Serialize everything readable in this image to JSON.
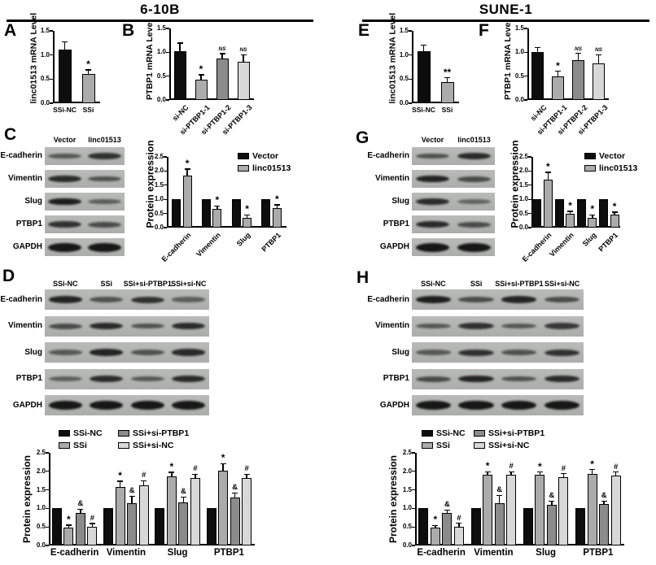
{
  "header": {
    "left_title": "6-10B",
    "right_title": "SUNE-1"
  },
  "palette": {
    "black": "#0d0d0d",
    "gray": "#ababab",
    "darkgray": "#8b8b8b",
    "lightgray": "#d8d8d8"
  },
  "panels": {
    "A": {
      "letter": "A"
    },
    "B": {
      "letter": "B"
    },
    "C": {
      "letter": "C"
    },
    "D": {
      "letter": "D"
    },
    "E": {
      "letter": "E"
    },
    "F": {
      "letter": "F"
    },
    "G": {
      "letter": "G"
    },
    "H": {
      "letter": "H"
    }
  },
  "blots": {
    "C": {
      "lane_labels": [
        "Vector",
        "linc01513"
      ],
      "rows": [
        {
          "label": "E-cadherin",
          "bands": [
            0.5,
            0.8
          ]
        },
        {
          "label": "Vimentin",
          "bands": [
            0.85,
            0.55
          ]
        },
        {
          "label": "Slug",
          "bands": [
            0.95,
            0.45
          ]
        },
        {
          "label": "PTBP1",
          "bands": [
            0.8,
            0.6
          ]
        },
        {
          "label": "GAPDH",
          "bands": [
            1,
            1
          ],
          "t": 11
        }
      ]
    },
    "G": {
      "lane_labels": [
        "Vector",
        "linc01513"
      ],
      "rows": [
        {
          "label": "E-cadherin",
          "bands": [
            0.55,
            0.85
          ]
        },
        {
          "label": "Vimentin",
          "bands": [
            0.9,
            0.6
          ]
        },
        {
          "label": "Slug",
          "bands": [
            0.85,
            0.4
          ]
        },
        {
          "label": "PTBP1",
          "bands": [
            0.85,
            0.6
          ]
        },
        {
          "label": "GAPDH",
          "bands": [
            1,
            1
          ],
          "t": 11
        }
      ]
    },
    "D": {
      "lane_labels": [
        "SSi-NC",
        "SSi",
        "SSi+si-PTBP1",
        "SSi+si-NC"
      ],
      "rows": [
        {
          "label": "E-cadherin",
          "bands": [
            0.9,
            0.55,
            0.8,
            0.45
          ]
        },
        {
          "label": "Vimentin",
          "bands": [
            0.6,
            0.85,
            0.55,
            0.85
          ]
        },
        {
          "label": "Slug",
          "bands": [
            0.5,
            0.9,
            0.55,
            0.85
          ]
        },
        {
          "label": "PTBP1",
          "bands": [
            0.45,
            0.85,
            0.5,
            0.85
          ]
        },
        {
          "label": "GAPDH",
          "bands": [
            1,
            1,
            1,
            1
          ],
          "t": 11
        }
      ]
    },
    "H": {
      "lane_labels": [
        "SSi-NC",
        "SSi",
        "SSi+si-PTBP1",
        "SSi+si-NC"
      ],
      "rows": [
        {
          "label": "E-cadherin",
          "bands": [
            0.95,
            0.6,
            0.9,
            0.6
          ]
        },
        {
          "label": "Vimentin",
          "bands": [
            0.5,
            0.8,
            0.5,
            0.75
          ]
        },
        {
          "label": "Slug",
          "bands": [
            0.5,
            0.8,
            0.55,
            0.8
          ]
        },
        {
          "label": "PTBP1",
          "bands": [
            0.6,
            0.9,
            0.55,
            0.85
          ]
        },
        {
          "label": "GAPDH",
          "bands": [
            1,
            1,
            1,
            1
          ],
          "t": 11
        }
      ]
    }
  },
  "chart_data": {
    "A": {
      "type": "bar",
      "ylabel": "linc01513 mRNA Level",
      "ylim": [
        0,
        1.5
      ],
      "yticks": [
        "0.0",
        "0.5",
        "1.0",
        "1.5"
      ],
      "categories": [
        "SSi-NC",
        "SSi"
      ],
      "series": [
        {
          "name": "",
          "colors": [
            "black",
            "gray"
          ],
          "values": [
            1.12,
            0.6
          ],
          "errors": [
            0.15,
            0.09
          ],
          "sig": [
            "",
            "*"
          ]
        }
      ]
    },
    "B": {
      "type": "bar",
      "ylabel": "PTBP1 mRNA Level",
      "ylim": [
        0,
        1.5
      ],
      "yticks": [
        "0.0",
        "0.5",
        "1.0",
        "1.5"
      ],
      "categories": [
        "si-NC",
        "si-PTBP1-1",
        "si-PTBP1-2",
        "si-PTBP1-3"
      ],
      "series": [
        {
          "name": "",
          "colors": [
            "black",
            "gray",
            "darkgray",
            "lightgray"
          ],
          "values": [
            1.03,
            0.43,
            0.87,
            0.8
          ],
          "errors": [
            0.16,
            0.1,
            0.1,
            0.15
          ],
          "sig": [
            "",
            "*",
            "NS",
            "NS"
          ]
        }
      ]
    },
    "C": {
      "type": "bar",
      "ylabel": "Protein expression",
      "ylim": [
        0,
        2.5
      ],
      "yticks": [
        "0.0",
        "0.5",
        "1.0",
        "1.5",
        "2.0",
        "2.5"
      ],
      "categories": [
        "E-cadherin",
        "Vimentin",
        "Slug",
        "PTBP1"
      ],
      "series": [
        {
          "name": "Vector",
          "color": "black",
          "values": [
            1,
            1,
            1,
            1
          ],
          "errors": [
            0,
            0,
            0,
            0
          ],
          "sig": [
            "",
            "",
            "",
            ""
          ]
        },
        {
          "name": "linc01513",
          "color": "gray",
          "values": [
            1.85,
            0.65,
            0.35,
            0.68
          ],
          "errors": [
            0.22,
            0.12,
            0.1,
            0.12
          ],
          "sig": [
            "*",
            "*",
            "*",
            "*"
          ]
        }
      ]
    },
    "D": {
      "type": "bar",
      "ylabel": "Protein expression",
      "ylim": [
        0,
        2.5
      ],
      "yticks": [
        "0.0",
        "0.5",
        "1.0",
        "1.5",
        "2.0",
        "2.5"
      ],
      "categories": [
        "E-cadherin",
        "Vimentin",
        "Slug",
        "PTBP1"
      ],
      "series": [
        {
          "name": "SSi-NC",
          "color": "black",
          "values": [
            1,
            1,
            1,
            1
          ],
          "errors": [
            0,
            0,
            0,
            0
          ],
          "sig": [
            "",
            "",
            "",
            ""
          ]
        },
        {
          "name": "SSi",
          "color": "gray",
          "values": [
            0.48,
            1.58,
            1.87,
            2.01
          ],
          "errors": [
            0.07,
            0.15,
            0.1,
            0.2
          ],
          "sig": [
            "*",
            "*",
            "*",
            "*"
          ]
        },
        {
          "name": "SSi+si-PTBP1",
          "color": "darkgray",
          "values": [
            0.88,
            1.13,
            1.17,
            1.3
          ],
          "errors": [
            0.1,
            0.2,
            0.14,
            0.12
          ],
          "sig": [
            "&",
            "&",
            "&",
            "&"
          ]
        },
        {
          "name": "SSi+si-NC",
          "color": "lightgray",
          "values": [
            0.51,
            1.63,
            1.82,
            1.82
          ],
          "errors": [
            0.08,
            0.12,
            0.1,
            0.1
          ],
          "sig": [
            "#",
            "#",
            "#",
            "#"
          ]
        }
      ]
    },
    "E": {
      "type": "bar",
      "ylabel": "linc01513 mRNA Level",
      "ylim": [
        0,
        1.5
      ],
      "yticks": [
        "0.0",
        "0.5",
        "1.0",
        "1.5"
      ],
      "categories": [
        "SSi-NC",
        "SSi"
      ],
      "series": [
        {
          "name": "",
          "colors": [
            "black",
            "gray"
          ],
          "values": [
            1.08,
            0.43
          ],
          "errors": [
            0.12,
            0.1
          ],
          "sig": [
            "",
            "**"
          ]
        }
      ]
    },
    "F": {
      "type": "bar",
      "ylabel": "PTBP1 mRNA Level",
      "ylim": [
        0,
        1.5
      ],
      "yticks": [
        "0.0",
        "0.5",
        "1.0",
        "1.5"
      ],
      "categories": [
        "si-NC",
        "si-PTBP1-1",
        "si-PTBP1-2",
        "si-PTBP1-3"
      ],
      "series": [
        {
          "name": "",
          "colors": [
            "black",
            "gray",
            "darkgray",
            "lightgray"
          ],
          "values": [
            1.0,
            0.5,
            0.83,
            0.77
          ],
          "errors": [
            0.1,
            0.1,
            0.15,
            0.18
          ],
          "sig": [
            "",
            "*",
            "NS",
            "NS"
          ]
        }
      ]
    },
    "G": {
      "type": "bar",
      "ylabel": "Protein expression",
      "ylim": [
        0,
        2.5
      ],
      "yticks": [
        "0.0",
        "0.5",
        "1.0",
        "1.5",
        "2.0",
        "2.5"
      ],
      "categories": [
        "E-cadherin",
        "Vimentin",
        "Slug",
        "PTBP1"
      ],
      "series": [
        {
          "name": "Vector",
          "color": "black",
          "values": [
            1,
            1,
            1,
            1
          ],
          "errors": [
            0,
            0,
            0,
            0
          ],
          "sig": [
            "",
            "",
            "",
            ""
          ]
        },
        {
          "name": "linc01513",
          "color": "gray",
          "values": [
            1.7,
            0.5,
            0.35,
            0.47
          ],
          "errors": [
            0.25,
            0.08,
            0.1,
            0.08
          ],
          "sig": [
            "*",
            "*",
            "*",
            "*"
          ]
        }
      ]
    },
    "H": {
      "type": "bar",
      "ylabel": "Protein expression",
      "ylim": [
        0,
        2.5
      ],
      "yticks": [
        "0.0",
        "0.5",
        "1.0",
        "1.5",
        "2.0",
        "2.5"
      ],
      "categories": [
        "E-cadherin",
        "Vimentin",
        "Slug",
        "PTBP1"
      ],
      "series": [
        {
          "name": "SSi-NC",
          "color": "black",
          "values": [
            1,
            1,
            1,
            1
          ],
          "errors": [
            0,
            0,
            0,
            0
          ],
          "sig": [
            "",
            "",
            "",
            ""
          ]
        },
        {
          "name": "SSi",
          "color": "gray",
          "values": [
            0.48,
            1.91,
            1.9,
            1.92
          ],
          "errors": [
            0.06,
            0.08,
            0.08,
            0.13
          ],
          "sig": [
            "*",
            "*",
            "*",
            "*"
          ]
        },
        {
          "name": "SSi+si-PTBP1",
          "color": "darkgray",
          "values": [
            0.88,
            1.13,
            1.1,
            1.12
          ],
          "errors": [
            0.08,
            0.22,
            0.1,
            0.08
          ],
          "sig": [
            "&",
            "&",
            "&",
            "&"
          ]
        },
        {
          "name": "SSi+si-NC",
          "color": "lightgray",
          "values": [
            0.51,
            1.91,
            1.84,
            1.88
          ],
          "errors": [
            0.09,
            0.08,
            0.1,
            0.1
          ],
          "sig": [
            "#",
            "#",
            "#",
            "#"
          ]
        }
      ]
    }
  }
}
